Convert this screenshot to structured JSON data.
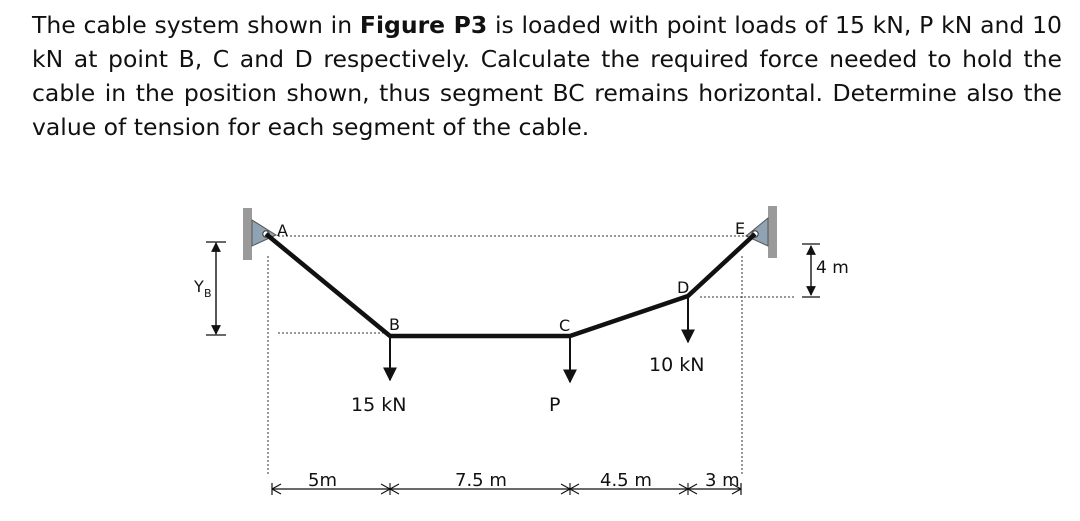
{
  "problem": {
    "text_before": "The cable system shown in ",
    "figure_ref": "Figure P3",
    "text_after": " is loaded with point loads of 15 kN, P kN and 10 kN at point B, C and D respectively. Calculate the required force needed to hold the cable in the position shown, thus segment BC remains horizontal. Determine also the value of tension for each segment of the cable."
  },
  "figure": {
    "points": {
      "A": "A",
      "B": "B",
      "C": "C",
      "D": "D",
      "E": "E"
    },
    "loads": {
      "B": "15 kN",
      "C": "P",
      "D": "10 kN"
    },
    "dimensions": {
      "yb": "Y",
      "yb_sub": "B",
      "height_e": "4 m",
      "span_ab": "5m",
      "span_bc": "7.5 m",
      "span_cd": "4.5 m",
      "span_de": "3 m"
    },
    "colors": {
      "cable": "#111111",
      "support": "#8fa3b3",
      "wall": "#9a9a9a"
    }
  }
}
